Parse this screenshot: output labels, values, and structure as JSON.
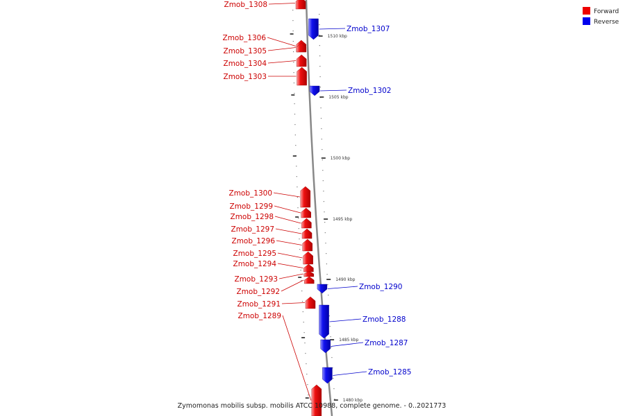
{
  "caption": "Zymomonas mobilis subsp. mobilis ATCC 10988, complete genome. - 0..2021773",
  "legend": [
    {
      "label": "Forward",
      "color": "#ee0000"
    },
    {
      "label": "Reverse",
      "color": "#0000ee"
    }
  ],
  "ticks": [
    "1510 kbp",
    "1505 kbp",
    "1500 kbp",
    "1495 kbp",
    "1490 kbp",
    "1485 kbp",
    "1480 kbp"
  ],
  "genes": [
    {
      "name": "Zmob_1308",
      "strand": "forward"
    },
    {
      "name": "Zmob_1307",
      "strand": "reverse"
    },
    {
      "name": "Zmob_1306",
      "strand": "forward"
    },
    {
      "name": "Zmob_1305",
      "strand": "forward"
    },
    {
      "name": "Zmob_1304",
      "strand": "forward"
    },
    {
      "name": "Zmob_1303",
      "strand": "forward"
    },
    {
      "name": "Zmob_1302",
      "strand": "reverse"
    },
    {
      "name": "Zmob_1300",
      "strand": "forward"
    },
    {
      "name": "Zmob_1299",
      "strand": "forward"
    },
    {
      "name": "Zmob_1298",
      "strand": "forward"
    },
    {
      "name": "Zmob_1297",
      "strand": "forward"
    },
    {
      "name": "Zmob_1296",
      "strand": "forward"
    },
    {
      "name": "Zmob_1295",
      "strand": "forward"
    },
    {
      "name": "Zmob_1294",
      "strand": "forward"
    },
    {
      "name": "Zmob_1293",
      "strand": "forward"
    },
    {
      "name": "Zmob_1292",
      "strand": "forward"
    },
    {
      "name": "Zmob_1291",
      "strand": "forward"
    },
    {
      "name": "Zmob_1289",
      "strand": "forward"
    },
    {
      "name": "Zmob_1290",
      "strand": "reverse"
    },
    {
      "name": "Zmob_1288",
      "strand": "reverse"
    },
    {
      "name": "Zmob_1287",
      "strand": "reverse"
    },
    {
      "name": "Zmob_1285",
      "strand": "reverse"
    }
  ]
}
